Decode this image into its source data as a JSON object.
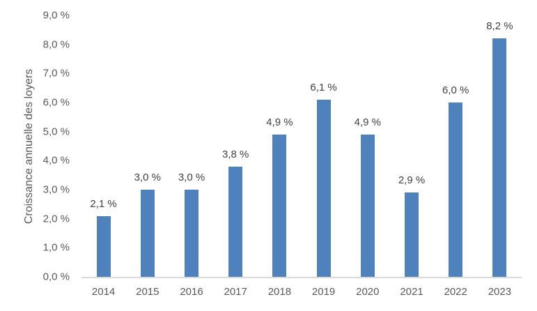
{
  "chart_data": {
    "type": "bar",
    "title": "",
    "xlabel": "",
    "ylabel": "Croissance annuelle des loyers",
    "categories": [
      "2014",
      "2015",
      "2016",
      "2017",
      "2018",
      "2019",
      "2020",
      "2021",
      "2022",
      "2023"
    ],
    "values": [
      2.1,
      3.0,
      3.0,
      3.8,
      4.9,
      6.1,
      4.9,
      2.9,
      6.0,
      8.2
    ],
    "data_labels": [
      "2,1 %",
      "3,0 %",
      "3,0 %",
      "3,8 %",
      "4,9 %",
      "6,1 %",
      "4,9 %",
      "2,9 %",
      "6,0 %",
      "8,2 %"
    ],
    "ylim": [
      0,
      9
    ],
    "yticks": [
      0,
      1,
      2,
      3,
      4,
      5,
      6,
      7,
      8,
      9
    ],
    "ytick_labels": [
      "0,0 %",
      "1,0 %",
      "2,0 %",
      "3,0 %",
      "4,0 %",
      "5,0 %",
      "6,0 %",
      "7,0 %",
      "8,0 %",
      "9,0 %"
    ],
    "grid": false,
    "legend": null,
    "bar_color": "#4f81bd",
    "axis_color": "#d9d9d9"
  }
}
